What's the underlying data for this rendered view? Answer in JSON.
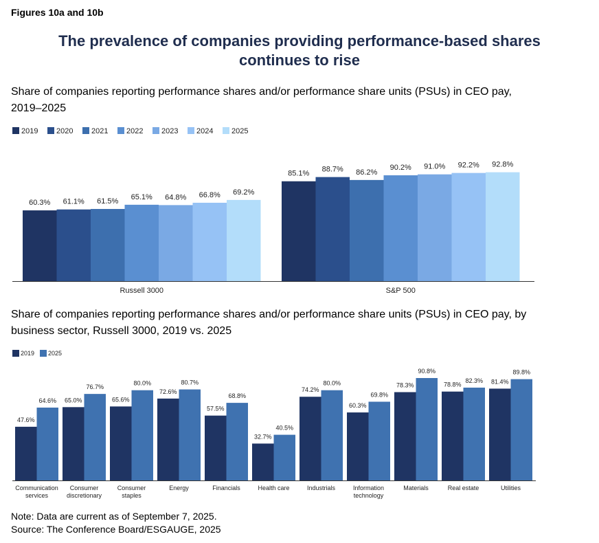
{
  "figure_label": "Figures 10a and 10b",
  "title_line1": "The prevalence of companies providing performance-based shares",
  "title_line2": "continues to rise",
  "colors": {
    "2019": "#1f3463",
    "2020": "#2b4f8c",
    "2021": "#3d6fae",
    "2022": "#5a8fd1",
    "2023": "#7aa9e4",
    "2024": "#96c2f5",
    "2025": "#b3ddfa",
    "2025_sector": "#3f72b0",
    "axis": "#333333"
  },
  "chart_data": [
    {
      "type": "bar",
      "title_line1": "Share of companies reporting performance shares and/or performance share units (PSUs) in CEO pay,",
      "title_line2": "2019–2025",
      "categories": [
        "Russell 3000",
        "S&P 500"
      ],
      "series": [
        {
          "name": "2019",
          "values": [
            60.3,
            85.1
          ],
          "labels": [
            "60.3%",
            "85.1%"
          ]
        },
        {
          "name": "2020",
          "values": [
            61.1,
            88.7
          ],
          "labels": [
            "61.1%",
            "88.7%"
          ]
        },
        {
          "name": "2021",
          "values": [
            61.5,
            86.2
          ],
          "labels": [
            "61.5%",
            "86.2%"
          ]
        },
        {
          "name": "2022",
          "values": [
            65.1,
            90.2
          ],
          "labels": [
            "65.1%",
            "90.2%"
          ]
        },
        {
          "name": "2023",
          "values": [
            64.8,
            91.0
          ],
          "labels": [
            "64.8%",
            "91.0%"
          ]
        },
        {
          "name": "2024",
          "values": [
            66.8,
            92.2
          ],
          "labels": [
            "66.8%",
            "92.2%"
          ]
        },
        {
          "name": "2025",
          "values": [
            69.2,
            92.8
          ],
          "labels": [
            "69.2%",
            "92.8%"
          ]
        }
      ],
      "legend": "top-left",
      "ylim": [
        0,
        100
      ],
      "grid": false
    },
    {
      "type": "bar",
      "title_line1": "Share of companies reporting performance shares and/or performance share units (PSUs) in CEO pay, by",
      "title_line2": "business sector, Russell 3000, 2019 vs. 2025",
      "categories": [
        [
          "Communication",
          "services"
        ],
        [
          "Consumer",
          "discretionary"
        ],
        [
          "Consumer",
          "staples"
        ],
        [
          "Energy"
        ],
        [
          "Financials"
        ],
        [
          "Health care"
        ],
        [
          "Industrials"
        ],
        [
          "Information",
          "technology"
        ],
        [
          "Materials"
        ],
        [
          "Real estate"
        ],
        [
          "Utilities"
        ]
      ],
      "series": [
        {
          "name": "2019",
          "values": [
            47.6,
            65.0,
            65.6,
            72.6,
            57.5,
            32.7,
            74.2,
            60.3,
            78.3,
            78.8,
            81.4
          ],
          "labels": [
            "47.6%",
            "65.0%",
            "65.6%",
            "72.6%",
            "57.5%",
            "32.7%",
            "74.2%",
            "60.3%",
            "78.3%",
            "78.8%",
            "81.4%"
          ]
        },
        {
          "name": "2025",
          "values": [
            64.6,
            76.7,
            80.0,
            80.7,
            68.8,
            40.5,
            80.0,
            69.8,
            90.8,
            82.3,
            89.8
          ],
          "labels": [
            "64.6%",
            "76.7%",
            "80.0%",
            "80.7%",
            "68.8%",
            "40.5%",
            "80.0%",
            "69.8%",
            "90.8%",
            "82.3%",
            "89.8%"
          ]
        }
      ],
      "legend": "top-left",
      "ylim": [
        0,
        100
      ],
      "grid": false
    }
  ],
  "note_line1": "Note: Data are current as of September 7, 2025.",
  "note_line2": "Source: The Conference Board/ESGAUGE, 2025"
}
